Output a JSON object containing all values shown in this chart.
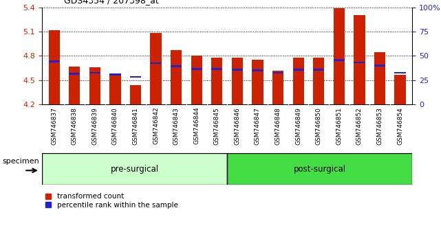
{
  "title": "GDS4354 / 207398_at",
  "categories": [
    "GSM746837",
    "GSM746838",
    "GSM746839",
    "GSM746840",
    "GSM746841",
    "GSM746842",
    "GSM746843",
    "GSM746844",
    "GSM746845",
    "GSM746846",
    "GSM746847",
    "GSM746848",
    "GSM746849",
    "GSM746850",
    "GSM746851",
    "GSM746852",
    "GSM746853",
    "GSM746854"
  ],
  "red_values": [
    5.12,
    4.67,
    4.66,
    4.56,
    4.44,
    5.08,
    4.87,
    4.8,
    4.78,
    4.78,
    4.75,
    4.62,
    4.78,
    4.78,
    5.39,
    5.3,
    4.85,
    4.57
  ],
  "blue_values": [
    4.73,
    4.58,
    4.59,
    4.57,
    4.54,
    4.71,
    4.67,
    4.64,
    4.64,
    4.63,
    4.62,
    4.59,
    4.63,
    4.63,
    4.75,
    4.72,
    4.68,
    4.59
  ],
  "ylim_left": [
    4.2,
    5.4
  ],
  "ylim_right": [
    0,
    100
  ],
  "yticks_left": [
    4.2,
    4.5,
    4.8,
    5.1,
    5.4
  ],
  "yticks_right": [
    0,
    25,
    50,
    75,
    100
  ],
  "ytick_labels_right": [
    "0",
    "25",
    "50",
    "75",
    "100%"
  ],
  "pre_surgical_count": 9,
  "post_surgical_count": 9,
  "group_labels": [
    "pre-surgical",
    "post-surgical"
  ],
  "legend_labels": [
    "transformed count",
    "percentile rank within the sample"
  ],
  "bar_color_red": "#cc2200",
  "bar_color_blue": "#2222cc",
  "pre_bg": "#ccffcc",
  "post_bg": "#44dd44",
  "xtick_bg": "#d8d8d8",
  "ybase": 4.2,
  "bar_width": 0.55,
  "specimen_label": "specimen"
}
